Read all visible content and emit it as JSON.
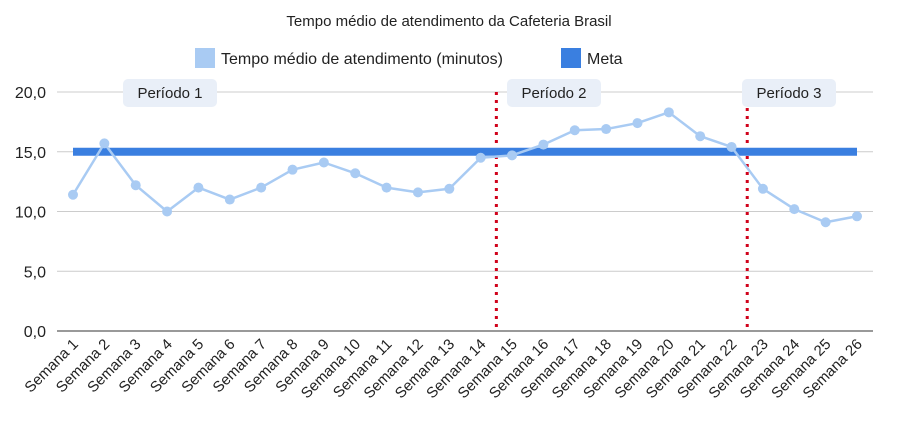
{
  "chart_data": {
    "type": "line",
    "title": "Tempo médio de atendimento da Cafeteria Brasil",
    "xlabel": "",
    "ylabel": "",
    "ylim": [
      0,
      20
    ],
    "yticks": [
      "0,0",
      "5,0",
      "10,0",
      "15,0",
      "20,0"
    ],
    "ytick_values": [
      0,
      5,
      10,
      15,
      20
    ],
    "grid": true,
    "legend_position": "top",
    "categories": [
      "Semana 1",
      "Semana 2",
      "Semana 3",
      "Semana 4",
      "Semana 5",
      "Semana 6",
      "Semana 7",
      "Semana 8",
      "Semana 9",
      "Semana 10",
      "Semana 11",
      "Semana 12",
      "Semana 13",
      "Semana 14",
      "Semana 15",
      "Semana 16",
      "Semana 17",
      "Semana 18",
      "Semana 19",
      "Semana 20",
      "Semana 21",
      "Semana 22",
      "Semana 23",
      "Semana 24",
      "Semana 25",
      "Semana 26"
    ],
    "series": [
      {
        "name": "Tempo médio de atendimento (minutos)",
        "color": "#a9cbf3",
        "values": [
          11.4,
          15.7,
          12.2,
          10.0,
          12.0,
          11.0,
          12.0,
          13.5,
          14.1,
          13.2,
          12.0,
          11.6,
          11.9,
          14.5,
          14.7,
          15.6,
          16.8,
          16.9,
          17.4,
          18.3,
          16.3,
          15.4,
          11.9,
          10.2,
          9.1,
          9.6
        ]
      },
      {
        "name": "Meta",
        "color": "#3a7fe0",
        "values": [
          15,
          15,
          15,
          15,
          15,
          15,
          15,
          15,
          15,
          15,
          15,
          15,
          15,
          15,
          15,
          15,
          15,
          15,
          15,
          15,
          15,
          15,
          15,
          15,
          15,
          15
        ]
      }
    ],
    "period_separators": [
      {
        "after_category": "Semana 14",
        "color": "#d0021b"
      },
      {
        "after_category": "Semana 22",
        "color": "#d0021b"
      }
    ],
    "period_labels": [
      {
        "label": "Período 1",
        "start": "Semana 1",
        "end": "Semana 14"
      },
      {
        "label": "Período 2",
        "start": "Semana 15",
        "end": "Semana 22"
      },
      {
        "label": "Período 3",
        "start": "Semana 23",
        "end": "Semana 26"
      }
    ]
  }
}
